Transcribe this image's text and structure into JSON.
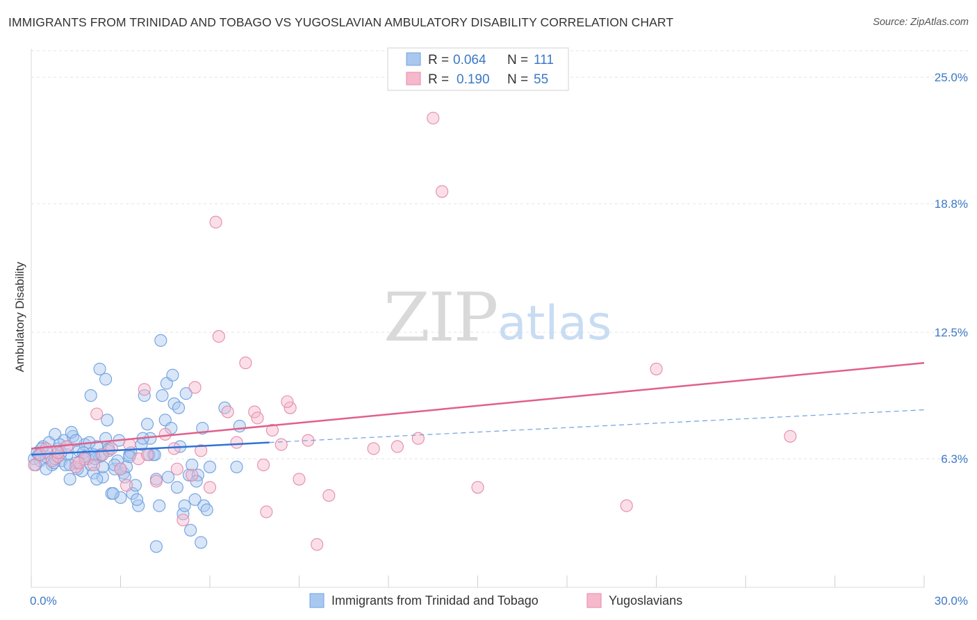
{
  "header": {
    "title": "IMMIGRANTS FROM TRINIDAD AND TOBAGO VS YUGOSLAVIAN AMBULATORY DISABILITY CORRELATION CHART",
    "source": "Source: ZipAtlas.com"
  },
  "watermark": {
    "zip": "ZIP",
    "atlas": "atlas"
  },
  "legend": {
    "rows": [
      {
        "r_label": "R = ",
        "r_value": "0.064",
        "n_label": "N = ",
        "n_value": "111",
        "color": "#a8c8f0"
      },
      {
        "r_label": "R = ",
        "r_value": "0.190",
        "n_label": "N = ",
        "n_value": "55",
        "color": "#f6b8cb"
      }
    ]
  },
  "chart_data": {
    "type": "scatter",
    "title": "IMMIGRANTS FROM TRINIDAD AND TOBAGO VS YUGOSLAVIAN AMBULATORY DISABILITY CORRELATION CHART",
    "xlabel": "",
    "ylabel": "Ambulatory Disability",
    "xlim": [
      0,
      30
    ],
    "ylim": [
      0,
      26.3
    ],
    "x_tick_labels": [
      "0.0%",
      "30.0%"
    ],
    "y_ticks": [
      6.3,
      12.5,
      18.8,
      25.0
    ],
    "y_tick_labels": [
      "6.3%",
      "12.5%",
      "18.8%",
      "25.0%"
    ],
    "grid": true,
    "legend_position": "top-center",
    "series": [
      {
        "name": "Immigrants from Trinidad and Tobago",
        "color": "#6fa0e0",
        "fill": "#a8c8f0",
        "trend": {
          "x": [
            0,
            8.0
          ],
          "y": [
            6.5,
            7.1
          ],
          "dashed_to": [
            30,
            8.7
          ]
        },
        "points": [
          [
            0.1,
            6.3
          ],
          [
            0.2,
            6.6
          ],
          [
            0.3,
            6.2
          ],
          [
            0.4,
            6.9
          ],
          [
            0.5,
            6.4
          ],
          [
            0.6,
            7.1
          ],
          [
            0.7,
            6.0
          ],
          [
            0.8,
            7.5
          ],
          [
            0.9,
            6.8
          ],
          [
            1.0,
            6.2
          ],
          [
            1.1,
            7.2
          ],
          [
            1.2,
            6.5
          ],
          [
            1.3,
            5.3
          ],
          [
            1.4,
            7.4
          ],
          [
            1.5,
            6.1
          ],
          [
            1.6,
            6.7
          ],
          [
            1.7,
            5.7
          ],
          [
            1.8,
            7.0
          ],
          [
            1.9,
            6.3
          ],
          [
            2.0,
            6.0
          ],
          [
            2.1,
            5.6
          ],
          [
            2.2,
            6.9
          ],
          [
            2.3,
            6.4
          ],
          [
            2.4,
            5.4
          ],
          [
            2.5,
            7.3
          ],
          [
            2.6,
            6.8
          ],
          [
            2.7,
            4.6
          ],
          [
            2.8,
            5.8
          ],
          [
            2.9,
            6.2
          ],
          [
            3.0,
            4.4
          ],
          [
            3.1,
            5.6
          ],
          [
            3.2,
            5.9
          ],
          [
            3.3,
            6.5
          ],
          [
            3.4,
            4.6
          ],
          [
            3.5,
            5.0
          ],
          [
            3.6,
            4.0
          ],
          [
            3.7,
            7.0
          ],
          [
            3.8,
            9.4
          ],
          [
            3.9,
            8.0
          ],
          [
            4.0,
            7.3
          ],
          [
            4.1,
            6.5
          ],
          [
            4.2,
            5.3
          ],
          [
            4.3,
            4.0
          ],
          [
            4.4,
            9.4
          ],
          [
            4.5,
            8.2
          ],
          [
            4.6,
            5.4
          ],
          [
            4.7,
            7.8
          ],
          [
            4.8,
            9.0
          ],
          [
            4.9,
            4.9
          ],
          [
            5.0,
            6.9
          ],
          [
            5.1,
            3.6
          ],
          [
            5.2,
            9.5
          ],
          [
            5.3,
            5.5
          ],
          [
            5.4,
            6.0
          ],
          [
            5.5,
            4.3
          ],
          [
            5.6,
            5.5
          ],
          [
            5.7,
            2.2
          ],
          [
            5.8,
            4.0
          ],
          [
            5.9,
            3.8
          ],
          [
            6.0,
            5.9
          ],
          [
            0.15,
            6.0
          ],
          [
            0.35,
            6.8
          ],
          [
            0.55,
            6.6
          ],
          [
            0.75,
            6.1
          ],
          [
            0.95,
            7.0
          ],
          [
            1.15,
            6.0
          ],
          [
            1.35,
            7.6
          ],
          [
            1.55,
            5.8
          ],
          [
            1.75,
            6.6
          ],
          [
            1.95,
            7.1
          ],
          [
            2.15,
            6.3
          ],
          [
            2.35,
            6.5
          ],
          [
            2.55,
            8.2
          ],
          [
            2.75,
            4.6
          ],
          [
            2.95,
            7.2
          ],
          [
            3.15,
            5.4
          ],
          [
            3.35,
            6.6
          ],
          [
            3.55,
            4.3
          ],
          [
            3.75,
            7.3
          ],
          [
            3.95,
            6.5
          ],
          [
            4.15,
            6.5
          ],
          [
            4.35,
            12.1
          ],
          [
            4.55,
            10.0
          ],
          [
            4.75,
            10.4
          ],
          [
            4.95,
            8.8
          ],
          [
            5.15,
            4.0
          ],
          [
            5.35,
            2.8
          ],
          [
            5.55,
            5.2
          ],
          [
            5.75,
            7.8
          ],
          [
            6.5,
            8.8
          ],
          [
            7.0,
            7.9
          ],
          [
            6.9,
            5.9
          ],
          [
            4.2,
            2.0
          ],
          [
            2.0,
            9.4
          ],
          [
            2.1,
            6.5
          ],
          [
            2.3,
            10.7
          ],
          [
            2.5,
            10.2
          ],
          [
            1.3,
            6.0
          ],
          [
            0.5,
            5.8
          ],
          [
            0.8,
            6.3
          ],
          [
            1.0,
            6.6
          ],
          [
            1.2,
            6.9
          ],
          [
            1.5,
            7.2
          ],
          [
            1.8,
            6.4
          ],
          [
            2.2,
            5.3
          ],
          [
            2.4,
            5.9
          ],
          [
            2.6,
            6.7
          ],
          [
            2.8,
            6.0
          ],
          [
            3.0,
            5.8
          ],
          [
            3.3,
            6.4
          ],
          [
            0.25,
            6.5
          ]
        ]
      },
      {
        "name": "Yugoslavians",
        "color": "#e58aa8",
        "fill": "#f6b8cb",
        "trend": {
          "x": [
            0,
            30
          ],
          "y": [
            6.8,
            11.0
          ]
        },
        "points": [
          [
            0.1,
            6.0
          ],
          [
            0.3,
            6.5
          ],
          [
            0.5,
            6.8
          ],
          [
            0.7,
            6.2
          ],
          [
            0.9,
            6.4
          ],
          [
            1.2,
            6.9
          ],
          [
            1.5,
            5.9
          ],
          [
            1.8,
            6.3
          ],
          [
            2.1,
            6.0
          ],
          [
            2.4,
            6.5
          ],
          [
            2.7,
            6.8
          ],
          [
            3.0,
            5.8
          ],
          [
            3.3,
            7.0
          ],
          [
            3.6,
            6.3
          ],
          [
            3.9,
            6.5
          ],
          [
            4.2,
            5.2
          ],
          [
            4.5,
            7.5
          ],
          [
            4.8,
            6.8
          ],
          [
            5.1,
            3.3
          ],
          [
            5.4,
            5.5
          ],
          [
            5.7,
            6.7
          ],
          [
            6.0,
            4.9
          ],
          [
            6.3,
            12.3
          ],
          [
            6.6,
            8.6
          ],
          [
            6.9,
            7.1
          ],
          [
            7.2,
            11.0
          ],
          [
            7.5,
            8.6
          ],
          [
            7.8,
            6.0
          ],
          [
            8.1,
            7.7
          ],
          [
            8.4,
            7.0
          ],
          [
            8.7,
            8.8
          ],
          [
            9.0,
            5.3
          ],
          [
            9.3,
            7.2
          ],
          [
            9.6,
            2.1
          ],
          [
            10.0,
            4.5
          ],
          [
            11.5,
            6.8
          ],
          [
            12.3,
            6.9
          ],
          [
            13.0,
            7.3
          ],
          [
            13.5,
            23.0
          ],
          [
            13.8,
            19.4
          ],
          [
            15.0,
            4.9
          ],
          [
            20.0,
            4.0
          ],
          [
            21.0,
            10.7
          ],
          [
            25.5,
            7.4
          ],
          [
            6.2,
            17.9
          ],
          [
            7.9,
            3.7
          ],
          [
            5.5,
            9.8
          ],
          [
            3.8,
            9.7
          ],
          [
            4.9,
            5.8
          ],
          [
            3.2,
            5.0
          ],
          [
            2.2,
            8.5
          ],
          [
            1.6,
            6.1
          ],
          [
            0.9,
            6.6
          ],
          [
            8.6,
            9.1
          ],
          [
            7.6,
            8.3
          ]
        ]
      }
    ]
  },
  "bottom_legend": {
    "items": [
      {
        "label": "Immigrants from Trinidad and Tobago",
        "color": "#a8c8f0"
      },
      {
        "label": "Yugoslavians",
        "color": "#f6b8cb"
      }
    ]
  }
}
